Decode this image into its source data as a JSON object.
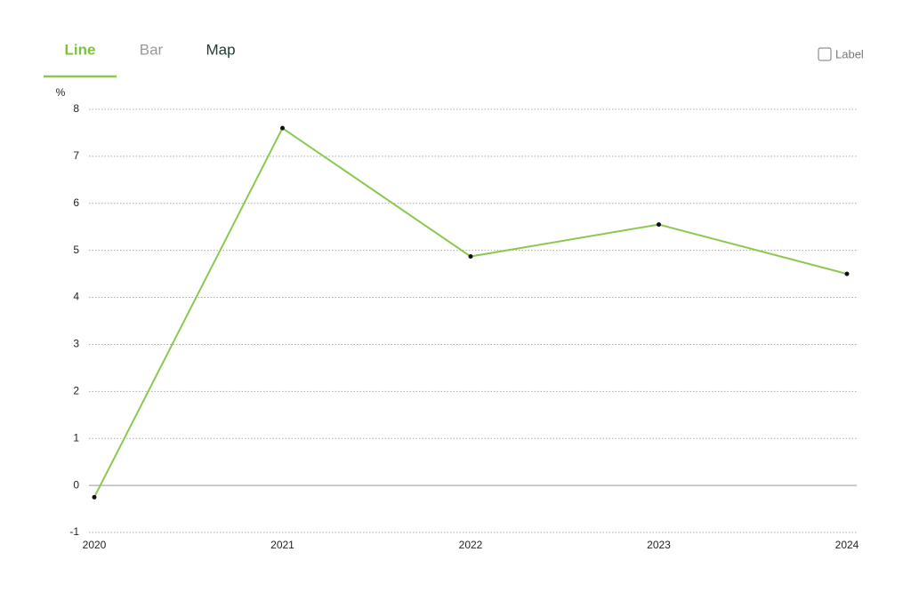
{
  "tabs": [
    "Line",
    "Bar",
    "Map"
  ],
  "checkbox_label": "Label",
  "chart_data": {
    "type": "line",
    "y_label": "%",
    "categories": [
      "2020",
      "2021",
      "2022",
      "2023",
      "2024"
    ],
    "series": [
      {
        "name": "Line",
        "color": "#8cc850",
        "values": [
          -0.25,
          7.6,
          4.87,
          5.55,
          4.5
        ]
      }
    ],
    "ylim": [
      -1,
      8
    ],
    "yticks": [
      -1,
      0,
      1,
      2,
      3,
      4,
      5,
      6,
      7,
      8
    ],
    "grid": true
  }
}
